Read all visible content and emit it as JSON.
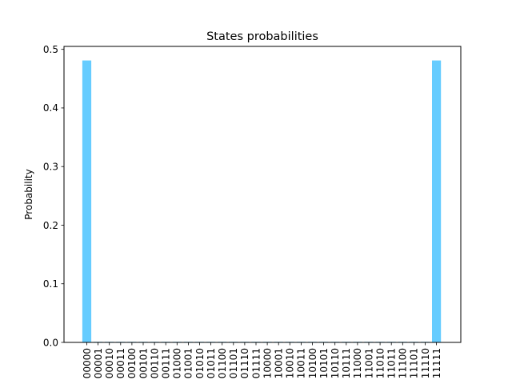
{
  "chart_data": {
    "type": "bar",
    "title": "States probabilities",
    "xlabel": "",
    "ylabel": "Probability",
    "ylim": [
      0,
      0.505
    ],
    "yticks": [
      0.0,
      0.1,
      0.2,
      0.3,
      0.4,
      0.5
    ],
    "ytick_labels": [
      "0.0",
      "0.1",
      "0.2",
      "0.3",
      "0.4",
      "0.5"
    ],
    "grid": false,
    "bar_color": "#66ccff",
    "categories": [
      "00000",
      "00001",
      "00010",
      "00011",
      "00100",
      "00101",
      "00110",
      "00111",
      "01000",
      "01001",
      "01010",
      "01011",
      "01100",
      "01101",
      "01110",
      "01111",
      "10000",
      "10001",
      "10010",
      "10011",
      "10100",
      "10101",
      "10110",
      "10111",
      "11000",
      "11001",
      "11010",
      "11011",
      "11100",
      "11101",
      "11110",
      "11111"
    ],
    "values": [
      0.481,
      0.001,
      0.001,
      0.001,
      0.001,
      0.001,
      0.001,
      0.001,
      0.001,
      0.001,
      0.001,
      0.001,
      0.001,
      0.001,
      0.001,
      0.001,
      0.001,
      0.001,
      0.001,
      0.001,
      0.001,
      0.001,
      0.001,
      0.001,
      0.001,
      0.001,
      0.001,
      0.001,
      0.001,
      0.001,
      0.001,
      0.481
    ]
  }
}
